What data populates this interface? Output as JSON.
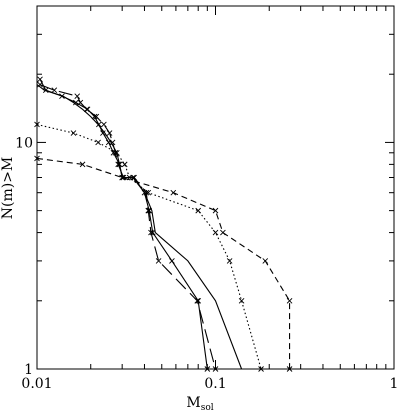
{
  "chart_data": {
    "type": "line",
    "title": "",
    "xlabel_main": "M",
    "xlabel_sub": "sol",
    "ylabel": "N(m)>M",
    "xscale": "log",
    "yscale": "log",
    "xlim": [
      0.01,
      1
    ],
    "ylim": [
      1,
      40
    ],
    "x_ticks": [
      0.01,
      0.1,
      1
    ],
    "x_tick_labels": [
      "0.01",
      "0.1",
      "1"
    ],
    "y_ticks": [
      1,
      10
    ],
    "y_tick_labels": [
      "1",
      "10"
    ],
    "grid": false,
    "legend": "none",
    "series": [
      {
        "style": "solid-x",
        "points": [
          [
            0.0104,
            19
          ],
          [
            0.0112,
            17
          ],
          [
            0.0138,
            16
          ],
          [
            0.0165,
            15
          ],
          [
            0.0192,
            14
          ],
          [
            0.021,
            13
          ],
          [
            0.0222,
            12
          ],
          [
            0.0234,
            11
          ],
          [
            0.0252,
            10
          ],
          [
            0.0268,
            9
          ],
          [
            0.029,
            8
          ],
          [
            0.03,
            7
          ],
          [
            0.0345,
            7
          ],
          [
            0.04,
            6
          ],
          [
            0.0425,
            5
          ],
          [
            0.0445,
            4
          ],
          [
            0.057,
            3
          ],
          [
            0.08,
            2
          ],
          [
            0.09,
            1
          ]
        ]
      },
      {
        "style": "long-dash-x",
        "points": [
          [
            0.0104,
            18
          ],
          [
            0.0125,
            17
          ],
          [
            0.0168,
            16
          ],
          [
            0.0175,
            15
          ],
          [
            0.019,
            14
          ],
          [
            0.0215,
            13
          ],
          [
            0.0237,
            12
          ],
          [
            0.0255,
            11
          ],
          [
            0.0265,
            10
          ],
          [
            0.0275,
            9
          ],
          [
            0.0285,
            8
          ],
          [
            0.0305,
            7
          ],
          [
            0.035,
            7
          ],
          [
            0.041,
            6
          ],
          [
            0.042,
            5
          ],
          [
            0.0435,
            4
          ],
          [
            0.048,
            3
          ],
          [
            0.079,
            2
          ],
          [
            0.1,
            1
          ]
        ]
      },
      {
        "style": "solid",
        "points": [
          [
            0.01,
            18
          ],
          [
            0.011,
            17
          ],
          [
            0.014,
            16
          ],
          [
            0.016,
            15
          ],
          [
            0.018,
            14
          ],
          [
            0.02,
            13
          ],
          [
            0.022,
            12
          ],
          [
            0.024,
            11
          ],
          [
            0.026,
            10
          ],
          [
            0.028,
            9
          ],
          [
            0.029,
            8
          ],
          [
            0.03,
            7
          ],
          [
            0.035,
            7
          ],
          [
            0.04,
            6
          ],
          [
            0.044,
            5
          ],
          [
            0.046,
            4
          ],
          [
            0.07,
            3
          ],
          [
            0.1,
            2
          ],
          [
            0.14,
            1
          ]
        ]
      },
      {
        "style": "dotted-x",
        "points": [
          [
            0.01,
            12
          ],
          [
            0.016,
            11
          ],
          [
            0.022,
            10
          ],
          [
            0.028,
            9
          ],
          [
            0.031,
            8
          ],
          [
            0.033,
            7
          ],
          [
            0.042,
            6
          ],
          [
            0.08,
            5
          ],
          [
            0.1,
            4
          ],
          [
            0.12,
            3
          ],
          [
            0.14,
            2
          ],
          [
            0.18,
            1
          ]
        ]
      },
      {
        "style": "dashed-x",
        "points": [
          [
            0.01,
            8.5
          ],
          [
            0.018,
            8
          ],
          [
            0.03,
            7
          ],
          [
            0.058,
            6
          ],
          [
            0.1,
            5
          ],
          [
            0.11,
            4
          ],
          [
            0.19,
            3
          ],
          [
            0.26,
            2
          ],
          [
            0.26,
            1
          ]
        ]
      }
    ]
  }
}
